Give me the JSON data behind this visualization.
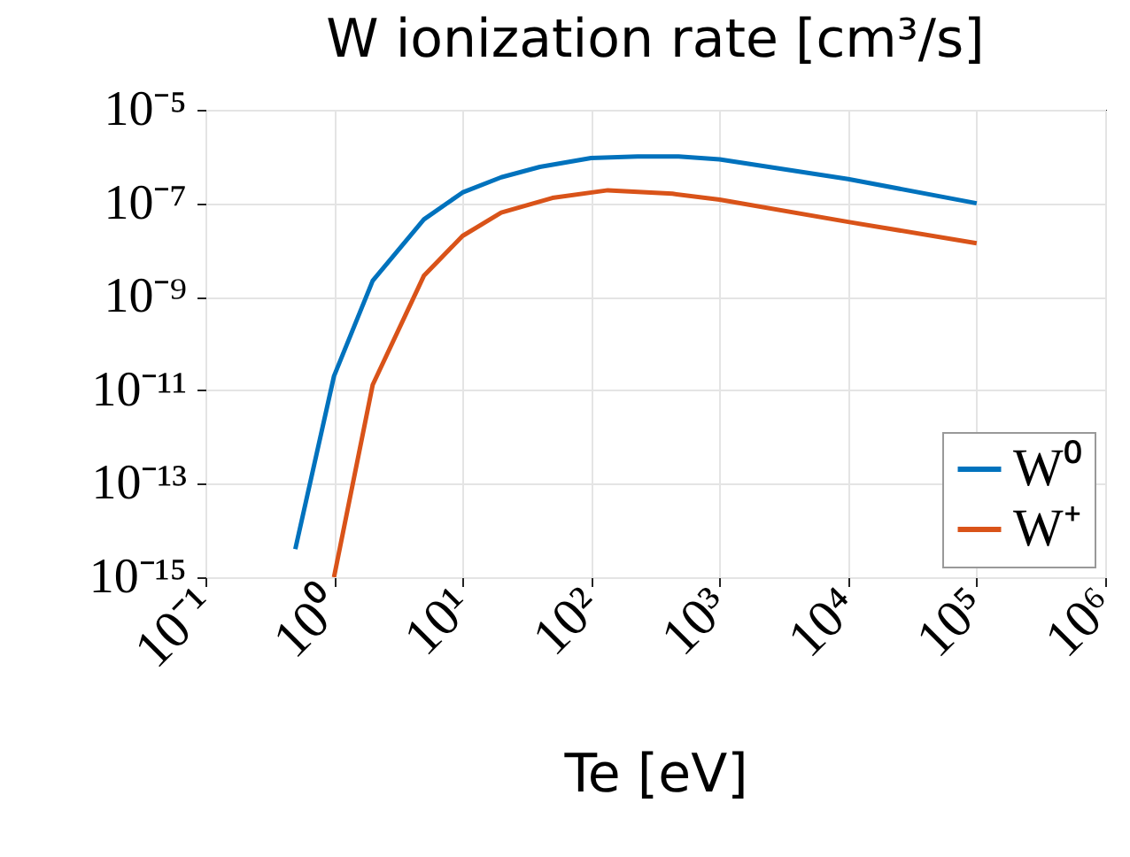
{
  "chart_data": {
    "type": "line",
    "title": "W ionization rate [cm³/s]",
    "xlabel": "Te [eV]",
    "log": "xy",
    "grid": true,
    "legend": "bottom right",
    "xlim": [
      0.1,
      1000000
    ],
    "xticks": [
      {
        "value": 0.1,
        "label": "10⁻¹"
      },
      {
        "value": 1,
        "label": "10⁰"
      },
      {
        "value": 10,
        "label": "10¹"
      },
      {
        "value": 100,
        "label": "10²"
      },
      {
        "value": 1000,
        "label": "10³"
      },
      {
        "value": 10000,
        "label": "10⁴"
      },
      {
        "value": 100000,
        "label": "10⁵"
      },
      {
        "value": 1000000,
        "label": "10⁶"
      }
    ],
    "ylim": [
      1e-15,
      1e-05
    ],
    "yticks": [
      {
        "value": 1e-15,
        "label": "10⁻¹⁵"
      },
      {
        "value": 1e-13,
        "label": "10⁻¹³"
      },
      {
        "value": 1e-11,
        "label": "10⁻¹¹"
      },
      {
        "value": 1e-09,
        "label": "10⁻⁹"
      },
      {
        "value": 1e-07,
        "label": "10⁻⁷"
      },
      {
        "value": 1e-05,
        "label": "10⁻⁵"
      }
    ],
    "series": [
      {
        "name": "W⁰",
        "color": "#0072bd",
        "x": [
          0.5,
          1,
          2,
          5,
          10,
          20,
          40,
          100,
          230,
          480,
          1000,
          10000,
          100000
        ],
        "values": [
          4e-15,
          2e-11,
          2.2e-09,
          4.5e-08,
          1.7e-07,
          3.6e-07,
          6e-07,
          9.3e-07,
          1e-06,
          1e-06,
          8.7e-07,
          3.3e-07,
          1e-07
        ]
      },
      {
        "name": "W⁺",
        "color": "#d95319",
        "x": [
          1,
          2,
          5,
          10,
          20,
          50,
          135,
          430,
          1000,
          10000,
          100000
        ],
        "values": [
          1e-15,
          1.3e-11,
          2.8e-09,
          2e-08,
          6.3e-08,
          1.3e-07,
          1.9e-07,
          1.6e-07,
          1.2e-07,
          4e-08,
          1.4e-08
        ]
      }
    ]
  }
}
